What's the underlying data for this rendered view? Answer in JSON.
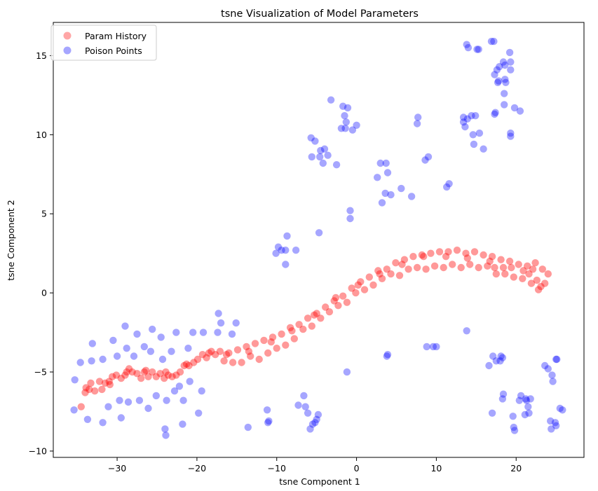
{
  "chart_data": {
    "type": "scatter",
    "title": "tsne Visualization of Model Parameters",
    "xlabel": "tsne Component 1",
    "ylabel": "tsne Component 2",
    "xlim": [
      -38,
      28.5
    ],
    "ylim": [
      -10.4,
      17.1
    ],
    "xticks": [
      -30,
      -20,
      -10,
      0,
      10,
      20
    ],
    "yticks": [
      -10,
      -5,
      0,
      5,
      10,
      15
    ],
    "xtick_labels": [
      "−30",
      "−20",
      "−10",
      "0",
      "10",
      "20"
    ],
    "ytick_labels": [
      "−10",
      "−5",
      "0",
      "5",
      "10",
      "15"
    ],
    "grid": false,
    "legend_position": "top-left",
    "series": [
      {
        "name": "Param History",
        "color": "#ff0000",
        "points": [
          [
            -34.5,
            -7.2
          ],
          [
            -34.0,
            -6.3
          ],
          [
            -33.9,
            -6.0
          ],
          [
            -33.3,
            -5.7
          ],
          [
            -32.8,
            -6.2
          ],
          [
            -32.2,
            -5.6
          ],
          [
            -31.9,
            -6.1
          ],
          [
            -31.5,
            -5.7
          ],
          [
            -30.9,
            -5.8
          ],
          [
            -30.6,
            -5.3
          ],
          [
            -30.1,
            -5.2
          ],
          [
            -29.5,
            -5.4
          ],
          [
            -29.0,
            -5.2
          ],
          [
            -28.5,
            -4.8
          ],
          [
            -28.1,
            -5.0
          ],
          [
            -27.5,
            -5.1
          ],
          [
            -27.0,
            -5.4
          ],
          [
            -26.6,
            -5.0
          ],
          [
            -26.1,
            -5.3
          ],
          [
            -25.6,
            -5.0
          ],
          [
            -25.1,
            -5.3
          ],
          [
            -24.6,
            -5.1
          ],
          [
            -24.1,
            -5.4
          ],
          [
            -23.6,
            -5.2
          ],
          [
            -23.1,
            -5.3
          ],
          [
            -22.6,
            -5.2
          ],
          [
            -22.1,
            -5.0
          ],
          [
            -21.6,
            -4.6
          ],
          [
            -21.0,
            -4.6
          ],
          [
            -20.4,
            -4.4
          ],
          [
            -19.9,
            -4.2
          ],
          [
            -19.3,
            -3.9
          ],
          [
            -18.8,
            -4.1
          ],
          [
            -18.2,
            -3.7
          ],
          [
            -17.7,
            -3.9
          ],
          [
            -17.1,
            -3.7
          ],
          [
            -16.6,
            -4.3
          ],
          [
            -16.0,
            -3.8
          ],
          [
            -15.5,
            -4.4
          ],
          [
            -14.9,
            -3.6
          ],
          [
            -14.4,
            -4.4
          ],
          [
            -13.8,
            -3.4
          ],
          [
            -13.3,
            -4.0
          ],
          [
            -12.7,
            -3.2
          ],
          [
            -12.2,
            -4.2
          ],
          [
            -11.6,
            -3.0
          ],
          [
            -11.1,
            -3.8
          ],
          [
            -10.5,
            -2.8
          ],
          [
            -10.0,
            -3.5
          ],
          [
            -9.4,
            -2.6
          ],
          [
            -8.9,
            -3.3
          ],
          [
            -8.3,
            -2.2
          ],
          [
            -7.8,
            -2.9
          ],
          [
            -7.2,
            -2.0
          ],
          [
            -6.7,
            -2.3
          ],
          [
            -6.1,
            -1.6
          ],
          [
            -5.6,
            -2.1
          ],
          [
            -5.0,
            -1.3
          ],
          [
            -4.5,
            -1.6
          ],
          [
            -3.9,
            -0.9
          ],
          [
            -3.4,
            -1.2
          ],
          [
            -2.8,
            -0.5
          ],
          [
            -2.3,
            -0.8
          ],
          [
            -1.7,
            -0.2
          ],
          [
            -1.2,
            -0.6
          ],
          [
            -0.6,
            0.3
          ],
          [
            -0.1,
            0.0
          ],
          [
            0.5,
            0.7
          ],
          [
            1.0,
            0.2
          ],
          [
            1.6,
            1.0
          ],
          [
            2.1,
            0.5
          ],
          [
            2.7,
            1.4
          ],
          [
            3.2,
            0.9
          ],
          [
            3.8,
            1.5
          ],
          [
            4.3,
            1.2
          ],
          [
            4.9,
            1.9
          ],
          [
            5.4,
            1.1
          ],
          [
            6.0,
            2.1
          ],
          [
            6.5,
            1.5
          ],
          [
            7.1,
            2.3
          ],
          [
            7.6,
            1.6
          ],
          [
            8.2,
            2.4
          ],
          [
            8.7,
            1.5
          ],
          [
            9.3,
            2.5
          ],
          [
            9.8,
            1.7
          ],
          [
            10.4,
            2.6
          ],
          [
            10.9,
            1.6
          ],
          [
            11.5,
            2.6
          ],
          [
            12.0,
            1.8
          ],
          [
            12.6,
            2.7
          ],
          [
            13.1,
            1.6
          ],
          [
            13.7,
            2.5
          ],
          [
            14.2,
            1.8
          ],
          [
            14.8,
            2.6
          ],
          [
            15.3,
            1.6
          ],
          [
            15.9,
            2.4
          ],
          [
            16.4,
            1.7
          ],
          [
            17.0,
            2.3
          ],
          [
            17.5,
            1.2
          ],
          [
            18.1,
            2.1
          ],
          [
            18.6,
            1.2
          ],
          [
            19.2,
            2.0
          ],
          [
            19.7,
            1.0
          ],
          [
            20.3,
            1.8
          ],
          [
            20.8,
            0.9
          ],
          [
            21.4,
            1.7
          ],
          [
            21.9,
            0.6
          ],
          [
            22.4,
            1.9
          ],
          [
            22.8,
            0.2
          ],
          [
            23.3,
            1.5
          ],
          [
            23.6,
            0.6
          ],
          [
            24.0,
            1.2
          ],
          [
            -33.5,
            -6.1
          ],
          [
            -31.0,
            -5.6
          ],
          [
            -28.8,
            -5.0
          ],
          [
            -26.4,
            -4.9
          ],
          [
            -23.9,
            -5.0
          ],
          [
            -21.3,
            -4.5
          ],
          [
            -18.5,
            -3.8
          ],
          [
            -16.3,
            -3.9
          ],
          [
            -13.5,
            -3.7
          ],
          [
            -10.7,
            -3.1
          ],
          [
            -8.1,
            -2.4
          ],
          [
            -5.3,
            -1.4
          ],
          [
            -2.6,
            -0.3
          ],
          [
            0.2,
            0.5
          ],
          [
            2.9,
            1.2
          ],
          [
            5.7,
            1.8
          ],
          [
            8.4,
            2.3
          ],
          [
            11.2,
            2.3
          ],
          [
            13.9,
            2.2
          ],
          [
            16.7,
            2.0
          ],
          [
            19.4,
            1.6
          ],
          [
            21.6,
            1.2
          ],
          [
            22.6,
            0.8
          ],
          [
            23.1,
            0.4
          ],
          [
            22.1,
            1.5
          ],
          [
            20.9,
            1.4
          ],
          [
            18.4,
            1.6
          ],
          [
            17.3,
            1.6
          ]
        ]
      },
      {
        "name": "Poison Points",
        "color": "#0000ff",
        "points": [
          [
            -35.4,
            -7.4
          ],
          [
            -35.3,
            -5.5
          ],
          [
            -34.6,
            -4.4
          ],
          [
            -33.7,
            -8.0
          ],
          [
            -33.2,
            -4.3
          ],
          [
            -33.1,
            -3.2
          ],
          [
            -31.8,
            -8.2
          ],
          [
            -31.8,
            -4.2
          ],
          [
            -31.1,
            -7.2
          ],
          [
            -30.5,
            -3.0
          ],
          [
            -30.0,
            -4.0
          ],
          [
            -29.7,
            -6.8
          ],
          [
            -29.5,
            -7.9
          ],
          [
            -29.0,
            -2.1
          ],
          [
            -28.8,
            -3.5
          ],
          [
            -28.6,
            -6.9
          ],
          [
            -27.9,
            -4.0
          ],
          [
            -27.5,
            -2.6
          ],
          [
            -27.2,
            -6.8
          ],
          [
            -26.6,
            -3.4
          ],
          [
            -26.1,
            -7.3
          ],
          [
            -25.8,
            -3.7
          ],
          [
            -25.6,
            -2.3
          ],
          [
            -25.1,
            -6.5
          ],
          [
            -24.5,
            -2.8
          ],
          [
            -24.3,
            -4.2
          ],
          [
            -24.0,
            -8.6
          ],
          [
            -23.9,
            -9.0
          ],
          [
            -23.8,
            -6.8
          ],
          [
            -23.2,
            -3.7
          ],
          [
            -22.8,
            -6.2
          ],
          [
            -22.6,
            -2.5
          ],
          [
            -22.2,
            -5.9
          ],
          [
            -21.8,
            -8.3
          ],
          [
            -21.7,
            -6.8
          ],
          [
            -21.1,
            -3.5
          ],
          [
            -20.9,
            -5.6
          ],
          [
            -20.5,
            -2.5
          ],
          [
            -19.8,
            -7.6
          ],
          [
            -19.4,
            -6.2
          ],
          [
            -19.2,
            -2.5
          ],
          [
            -17.4,
            -2.5
          ],
          [
            -17.3,
            -1.3
          ],
          [
            -17.0,
            -1.9
          ],
          [
            -15.6,
            -2.6
          ],
          [
            -15.1,
            -1.9
          ],
          [
            -13.6,
            -8.5
          ],
          [
            -11.2,
            -7.4
          ],
          [
            -11.1,
            -8.2
          ],
          [
            -11.0,
            -8.1
          ],
          [
            -10.1,
            2.5
          ],
          [
            -9.8,
            2.9
          ],
          [
            -9.4,
            2.7
          ],
          [
            -8.9,
            2.7
          ],
          [
            -8.9,
            1.8
          ],
          [
            -8.7,
            3.6
          ],
          [
            -7.6,
            2.7
          ],
          [
            -7.3,
            -7.1
          ],
          [
            -6.6,
            -6.5
          ],
          [
            -6.4,
            -7.2
          ],
          [
            -6.1,
            -7.6
          ],
          [
            -5.8,
            -8.6
          ],
          [
            -5.5,
            -8.3
          ],
          [
            -5.2,
            -8.2
          ],
          [
            -5.0,
            -8.0
          ],
          [
            -4.8,
            -7.7
          ],
          [
            -4.7,
            3.8
          ],
          [
            -5.7,
            9.8
          ],
          [
            -5.6,
            8.6
          ],
          [
            -5.2,
            9.6
          ],
          [
            -4.6,
            8.6
          ],
          [
            -4.5,
            9.0
          ],
          [
            -4.2,
            8.2
          ],
          [
            -4.0,
            9.1
          ],
          [
            -3.6,
            8.7
          ],
          [
            -3.2,
            12.2
          ],
          [
            -2.5,
            8.1
          ],
          [
            -1.9,
            10.4
          ],
          [
            -1.7,
            11.8
          ],
          [
            -1.5,
            11.2
          ],
          [
            -1.4,
            10.4
          ],
          [
            -1.3,
            10.8
          ],
          [
            -1.1,
            11.7
          ],
          [
            -0.8,
            5.2
          ],
          [
            -0.8,
            4.7
          ],
          [
            -1.2,
            -5.0
          ],
          [
            -0.5,
            10.3
          ],
          [
            0.0,
            10.6
          ],
          [
            2.6,
            7.3
          ],
          [
            3.0,
            8.2
          ],
          [
            3.2,
            5.7
          ],
          [
            3.6,
            6.3
          ],
          [
            3.7,
            8.2
          ],
          [
            3.9,
            7.6
          ],
          [
            3.9,
            -3.9
          ],
          [
            3.8,
            -4.0
          ],
          [
            4.3,
            6.2
          ],
          [
            5.6,
            6.6
          ],
          [
            6.9,
            6.1
          ],
          [
            7.6,
            10.7
          ],
          [
            7.7,
            11.1
          ],
          [
            8.6,
            8.4
          ],
          [
            9.0,
            8.6
          ],
          [
            8.8,
            -3.4
          ],
          [
            9.6,
            -3.4
          ],
          [
            10.0,
            -3.4
          ],
          [
            11.3,
            6.7
          ],
          [
            11.6,
            6.9
          ],
          [
            13.4,
            11.1
          ],
          [
            13.4,
            10.8
          ],
          [
            13.6,
            10.5
          ],
          [
            13.8,
            15.7
          ],
          [
            13.8,
            -2.4
          ],
          [
            13.9,
            11.0
          ],
          [
            14.0,
            15.5
          ],
          [
            14.4,
            11.2
          ],
          [
            14.6,
            10.0
          ],
          [
            14.7,
            9.4
          ],
          [
            14.9,
            11.2
          ],
          [
            15.1,
            15.4
          ],
          [
            15.3,
            15.4
          ],
          [
            15.4,
            10.1
          ],
          [
            15.9,
            9.1
          ],
          [
            16.6,
            -4.6
          ],
          [
            16.9,
            15.9
          ],
          [
            17.0,
            -7.6
          ],
          [
            17.1,
            -4.0
          ],
          [
            17.2,
            15.9
          ],
          [
            17.3,
            13.8
          ],
          [
            17.3,
            11.3
          ],
          [
            17.4,
            11.4
          ],
          [
            17.5,
            -4.3
          ],
          [
            17.6,
            14.1
          ],
          [
            17.7,
            13.3
          ],
          [
            17.8,
            13.4
          ],
          [
            17.9,
            14.3
          ],
          [
            18.0,
            -4.3
          ],
          [
            18.1,
            -4.0
          ],
          [
            18.3,
            -4.1
          ],
          [
            18.3,
            -6.7
          ],
          [
            18.4,
            14.6
          ],
          [
            18.4,
            -6.4
          ],
          [
            18.5,
            12.6
          ],
          [
            18.6,
            14.4
          ],
          [
            18.5,
            11.9
          ],
          [
            18.7,
            13.3
          ],
          [
            18.6,
            13.5
          ],
          [
            19.2,
            15.2
          ],
          [
            19.3,
            14.1
          ],
          [
            19.3,
            14.6
          ],
          [
            19.3,
            10.1
          ],
          [
            19.3,
            9.9
          ],
          [
            19.6,
            -7.8
          ],
          [
            19.7,
            -8.5
          ],
          [
            19.8,
            -8.7
          ],
          [
            19.8,
            11.7
          ],
          [
            20.4,
            -6.8
          ],
          [
            20.5,
            11.5
          ],
          [
            20.6,
            -6.5
          ],
          [
            21.1,
            -7.7
          ],
          [
            21.2,
            -6.7
          ],
          [
            21.3,
            -6.8
          ],
          [
            21.5,
            -7.2
          ],
          [
            21.6,
            -7.6
          ],
          [
            21.8,
            -6.7
          ],
          [
            23.6,
            -4.6
          ],
          [
            24.0,
            -4.8
          ],
          [
            24.3,
            -8.1
          ],
          [
            24.4,
            -8.6
          ],
          [
            24.5,
            -5.2
          ],
          [
            24.6,
            -5.6
          ],
          [
            24.9,
            -8.2
          ],
          [
            25.0,
            -4.2
          ],
          [
            25.1,
            -4.2
          ],
          [
            25.0,
            -8.4
          ],
          [
            25.5,
            -7.3
          ],
          [
            25.8,
            -7.4
          ]
        ]
      }
    ]
  }
}
